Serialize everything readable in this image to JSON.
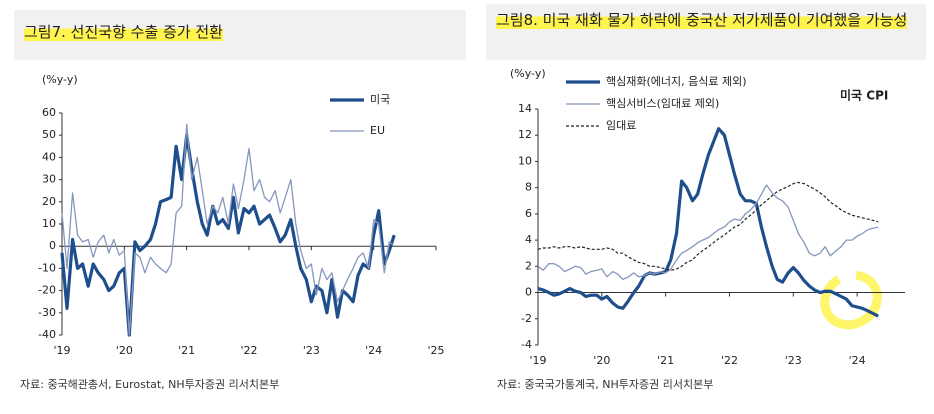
{
  "chart_data": [
    {
      "type": "line",
      "title": "그림7. 선진국향 수출 증가 전환",
      "y_label": "(%y-y)",
      "source": "자료: 중국해관총서, Eurostat, NH투자증권 리서치본부",
      "xlim": [
        2019,
        2025
      ],
      "xticks": [
        {
          "value": 2019,
          "label": "'19"
        },
        {
          "value": 2020,
          "label": "'20"
        },
        {
          "value": 2021,
          "label": "'21"
        },
        {
          "value": 2022,
          "label": "'22"
        },
        {
          "value": 2023,
          "label": "'23"
        },
        {
          "value": 2024,
          "label": "'24"
        },
        {
          "value": 2025,
          "label": "'25"
        }
      ],
      "ylim": [
        -40,
        60
      ],
      "yticks": [
        -40,
        -30,
        -20,
        -10,
        0,
        10,
        20,
        30,
        40,
        50,
        60
      ],
      "legend": "top-right",
      "x": [
        2019,
        2019.08,
        2019.17,
        2019.25,
        2019.33,
        2019.42,
        2019.5,
        2019.58,
        2019.67,
        2019.75,
        2019.83,
        2019.92,
        2020,
        2020.08,
        2020.17,
        2020.25,
        2020.33,
        2020.42,
        2020.5,
        2020.58,
        2020.67,
        2020.75,
        2020.83,
        2020.92,
        2021,
        2021.08,
        2021.17,
        2021.25,
        2021.33,
        2021.42,
        2021.5,
        2021.58,
        2021.67,
        2021.75,
        2021.83,
        2021.92,
        2022,
        2022.08,
        2022.17,
        2022.25,
        2022.33,
        2022.42,
        2022.5,
        2022.58,
        2022.67,
        2022.75,
        2022.83,
        2022.92,
        2023,
        2023.08,
        2023.17,
        2023.25,
        2023.33,
        2023.42,
        2023.5,
        2023.58,
        2023.67,
        2023.75,
        2023.83,
        2023.92,
        2024,
        2024.08,
        2024.17,
        2024.25,
        2024.33
      ],
      "series": [
        {
          "name": "미국",
          "color": "#1f4e8c",
          "style": "thick",
          "values": [
            -3,
            -28,
            3,
            -10,
            -8,
            -18,
            -8,
            -12,
            -15,
            -20,
            -18,
            -12,
            -10,
            -40,
            2,
            -2,
            0,
            3,
            10,
            20,
            21,
            22,
            45,
            30,
            50,
            35,
            20,
            10,
            5,
            18,
            10,
            12,
            8,
            22,
            6,
            17,
            15,
            18,
            10,
            12,
            14,
            8,
            2,
            5,
            12,
            0,
            -10,
            -15,
            -25,
            -18,
            -20,
            -30,
            -15,
            -32,
            -20,
            -22,
            -25,
            -13,
            -8,
            -10,
            5,
            16,
            -8,
            -2,
            5
          ]
        },
        {
          "name": "EU",
          "color": "#8597bd",
          "style": "thin",
          "values": [
            15,
            -10,
            24,
            5,
            2,
            3,
            -5,
            2,
            5,
            -3,
            3,
            -4,
            -2,
            -40,
            -3,
            -5,
            -12,
            -5,
            -8,
            -10,
            -12,
            -8,
            15,
            18,
            55,
            30,
            40,
            25,
            10,
            18,
            15,
            22,
            10,
            28,
            17,
            30,
            44,
            25,
            30,
            22,
            20,
            25,
            15,
            22,
            30,
            10,
            -2,
            -10,
            -8,
            -22,
            -10,
            -15,
            -12,
            -25,
            -20,
            -15,
            -10,
            -5,
            -3,
            -10,
            12,
            10,
            -12,
            2,
            0
          ]
        }
      ]
    },
    {
      "type": "line",
      "title": "그림8. 미국 재화 물가 하락에 중국산 저가제품이 기여했을 가능성",
      "y_label": "(%y-y)",
      "source": "자료: 중국국가통계국, NH투자증권 리서치본부",
      "annotation": "미국 CPI",
      "xlim": [
        2019,
        2024.75
      ],
      "xticks": [
        {
          "value": 2019,
          "label": "'19"
        },
        {
          "value": 2020,
          "label": "'20"
        },
        {
          "value": 2021,
          "label": "'21"
        },
        {
          "value": 2022,
          "label": "'22"
        },
        {
          "value": 2023,
          "label": "'23"
        },
        {
          "value": 2024,
          "label": "'24"
        }
      ],
      "ylim": [
        -4,
        14
      ],
      "yticks": [
        -4,
        -2,
        0,
        2,
        4,
        6,
        8,
        10,
        12,
        14
      ],
      "legend": "top-left",
      "x": [
        2019,
        2019.08,
        2019.17,
        2019.25,
        2019.33,
        2019.42,
        2019.5,
        2019.58,
        2019.67,
        2019.75,
        2019.83,
        2019.92,
        2020,
        2020.08,
        2020.17,
        2020.25,
        2020.33,
        2020.42,
        2020.5,
        2020.58,
        2020.67,
        2020.75,
        2020.83,
        2020.92,
        2021,
        2021.08,
        2021.17,
        2021.25,
        2021.33,
        2021.42,
        2021.5,
        2021.58,
        2021.67,
        2021.75,
        2021.83,
        2021.92,
        2022,
        2022.08,
        2022.17,
        2022.25,
        2022.33,
        2022.42,
        2022.5,
        2022.58,
        2022.67,
        2022.75,
        2022.83,
        2022.92,
        2023,
        2023.08,
        2023.17,
        2023.25,
        2023.33,
        2023.42,
        2023.5,
        2023.58,
        2023.67,
        2023.75,
        2023.83,
        2023.92,
        2024,
        2024.08,
        2024.17,
        2024.25,
        2024.33
      ],
      "series": [
        {
          "name": "핵심재화(에너지, 음식료 제외)",
          "color": "#1f4e8c",
          "style": "thick",
          "values": [
            0.3,
            0.2,
            0,
            -0.2,
            -0.1,
            0.1,
            0.3,
            0.1,
            0,
            -0.3,
            -0.2,
            -0.2,
            -0.5,
            -0.3,
            -0.8,
            -1.1,
            -1.2,
            -0.6,
            0,
            0.5,
            1.3,
            1.5,
            1.4,
            1.5,
            1.6,
            2.5,
            4.5,
            8.5,
            8,
            7,
            7.5,
            9,
            10.5,
            11.5,
            12.5,
            12,
            10.5,
            9,
            7.5,
            7,
            7,
            6.8,
            5,
            3.5,
            2,
            1,
            0.8,
            1.5,
            1.9,
            1.5,
            0.9,
            0.5,
            0.2,
            0,
            0.1,
            0.1,
            -0.1,
            -0.3,
            -0.5,
            -1,
            -1.1,
            -1.2,
            -1.4,
            -1.6,
            -1.8
          ]
        },
        {
          "name": "핵심서비스(임대료 제외)",
          "color": "#8597bd",
          "style": "thin",
          "values": [
            2,
            1.7,
            2.2,
            2.2,
            2,
            1.6,
            1.8,
            2,
            1.9,
            1.4,
            1.6,
            1.7,
            1.8,
            1.2,
            1.6,
            1.4,
            1,
            1.2,
            1.5,
            1.2,
            1.3,
            1.5,
            1.4,
            1.6,
            1.5,
            1.8,
            2.5,
            3,
            3.2,
            3.5,
            3.8,
            4,
            4.2,
            4.5,
            4.8,
            5,
            5.4,
            5.6,
            5.5,
            6,
            6.3,
            6.8,
            7.5,
            8.2,
            7.6,
            7.2,
            7,
            6.5,
            5.5,
            4.5,
            3.8,
            3,
            2.8,
            3,
            3.5,
            2.8,
            3.2,
            3.5,
            4,
            4,
            4.3,
            4.5,
            4.8,
            4.9,
            5
          ]
        },
        {
          "name": "임대료",
          "color": "#222222",
          "style": "dashed",
          "values": [
            3.3,
            3.4,
            3.4,
            3.5,
            3.4,
            3.5,
            3.5,
            3.4,
            3.5,
            3.4,
            3.3,
            3.3,
            3.3,
            3.4,
            3.3,
            3,
            3,
            2.7,
            2.5,
            2.3,
            2.2,
            2,
            2,
            1.9,
            1.8,
            1.7,
            1.8,
            2,
            2.3,
            2.5,
            2.9,
            3.2,
            3.5,
            3.8,
            4.1,
            4.4,
            4.7,
            5,
            5.2,
            5.6,
            5.9,
            6.3,
            6.7,
            7,
            7.4,
            7.7,
            7.9,
            8.1,
            8.3,
            8.4,
            8.3,
            8.1,
            7.9,
            7.6,
            7.3,
            6.9,
            6.6,
            6.3,
            6.1,
            5.9,
            5.8,
            5.7,
            5.6,
            5.5,
            5.4
          ]
        }
      ]
    }
  ]
}
